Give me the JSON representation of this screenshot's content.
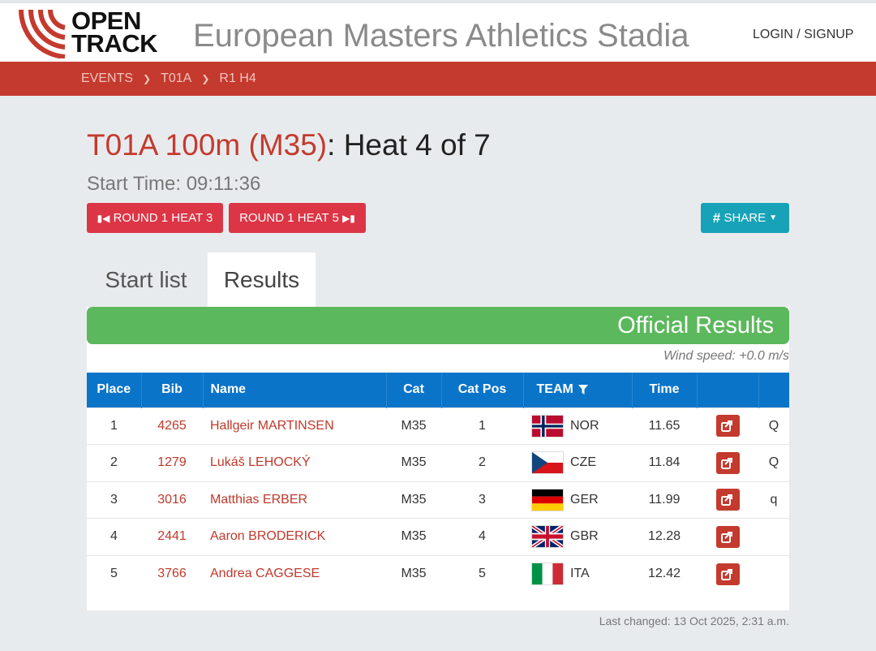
{
  "header": {
    "logo_line1": "OPEN",
    "logo_line2": "TRACK",
    "site_title": "European Masters Athletics Stadia",
    "login_label": "LOGIN / SIGNUP"
  },
  "breadcrumb": [
    "EVENTS",
    "T01A",
    "R1 H4"
  ],
  "page": {
    "event_title": "T01A 100m (M35)",
    "heat_title": ": Heat 4 of 7",
    "start_time": "Start Time: 09:11:36",
    "prev_label": "ROUND 1 HEAT 3",
    "next_label": "ROUND 1 HEAT 5",
    "share_label": "SHARE"
  },
  "tabs": [
    "Start list",
    "Results"
  ],
  "results": {
    "banner": "Official Results",
    "wind": "Wind speed: +0.0 m/s",
    "columns": [
      "Place",
      "Bib",
      "Name",
      "Cat",
      "Cat Pos",
      "TEAM",
      "Time",
      "",
      ""
    ],
    "rows": [
      {
        "place": "1",
        "bib": "4265",
        "name": "Hallgeir MARTINSEN",
        "cat": "M35",
        "cat_pos": "1",
        "team": "NOR",
        "time": "11.65",
        "q": "Q"
      },
      {
        "place": "2",
        "bib": "1279",
        "name": "Lukáš LEHOCKÝ",
        "cat": "M35",
        "cat_pos": "2",
        "team": "CZE",
        "time": "11.84",
        "q": "Q"
      },
      {
        "place": "3",
        "bib": "3016",
        "name": "Matthias ERBER",
        "cat": "M35",
        "cat_pos": "3",
        "team": "GER",
        "time": "11.99",
        "q": "q"
      },
      {
        "place": "4",
        "bib": "2441",
        "name": "Aaron BRODERICK",
        "cat": "M35",
        "cat_pos": "4",
        "team": "GBR",
        "time": "12.28",
        "q": ""
      },
      {
        "place": "5",
        "bib": "3766",
        "name": "Andrea CAGGESE",
        "cat": "M35",
        "cat_pos": "5",
        "team": "ITA",
        "time": "12.42",
        "q": ""
      }
    ]
  },
  "footer": {
    "last_changed": "Last changed: 13 Oct 2025, 2:31 a.m."
  },
  "colors": {
    "brand_red": "#c43a2e",
    "button_red": "#dc3545",
    "share_teal": "#17a2b8",
    "table_header_blue": "#0a74c9",
    "banner_green": "#5cb85c"
  }
}
